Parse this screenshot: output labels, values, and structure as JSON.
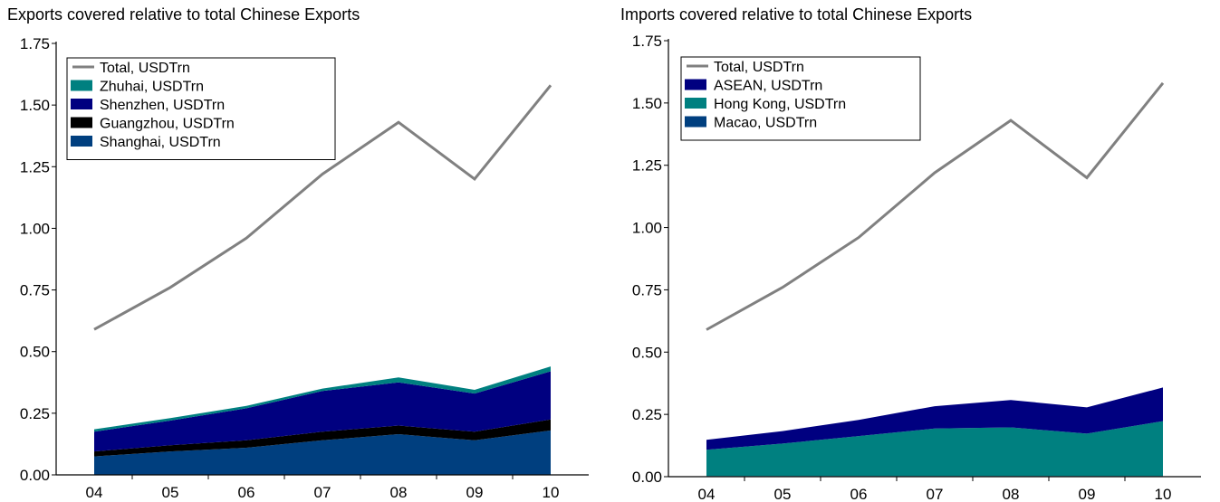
{
  "chart_data": [
    {
      "type": "area",
      "title": "Exports covered relative to total Chinese Exports",
      "categories": [
        "04",
        "05",
        "06",
        "07",
        "08",
        "09",
        "10"
      ],
      "ylim": [
        0,
        1.75
      ],
      "yticks": [
        "0.00",
        "0.25",
        "0.50",
        "0.75",
        "1.00",
        "1.25",
        "1.50",
        "1.75"
      ],
      "legend_position": "top-left",
      "line_series": {
        "name": "Total, USDTrn",
        "color": "#808080",
        "values": [
          0.59,
          0.76,
          0.96,
          1.22,
          1.43,
          1.2,
          1.58
        ]
      },
      "stack_order_bottom_to_top": [
        "Shanghai, USDTrn",
        "Guangzhou, USDTrn",
        "Shenzhen, USDTrn",
        "Zhuhai, USDTrn"
      ],
      "series": [
        {
          "name": "Zhuhai, USDTrn",
          "color": "#008080",
          "values": [
            0.01,
            0.01,
            0.01,
            0.01,
            0.02,
            0.015,
            0.02
          ]
        },
        {
          "name": "Shenzhen, USDTrn",
          "color": "#000080",
          "values": [
            0.08,
            0.1,
            0.13,
            0.165,
            0.175,
            0.155,
            0.195
          ]
        },
        {
          "name": "Guangzhou, USDTrn",
          "color": "#000000",
          "values": [
            0.02,
            0.025,
            0.03,
            0.035,
            0.035,
            0.035,
            0.045
          ]
        },
        {
          "name": "Shanghai, USDTrn",
          "color": "#003F7F",
          "values": [
            0.075,
            0.095,
            0.11,
            0.14,
            0.165,
            0.14,
            0.18
          ]
        }
      ]
    },
    {
      "type": "area",
      "title": "Imports covered relative to total Chinese Exports",
      "categories": [
        "04",
        "05",
        "06",
        "07",
        "08",
        "09",
        "10"
      ],
      "ylim": [
        0,
        1.75
      ],
      "yticks": [
        "0.00",
        "0.25",
        "0.50",
        "0.75",
        "1.00",
        "1.25",
        "1.50",
        "1.75"
      ],
      "legend_position": "top-left",
      "line_series": {
        "name": "Total, USDTrn",
        "color": "#808080",
        "values": [
          0.59,
          0.76,
          0.96,
          1.22,
          1.43,
          1.2,
          1.58
        ]
      },
      "stack_order_bottom_to_top": [
        "Macao, USDTrn",
        "Hong Kong, USDTrn",
        "ASEAN, USDTrn"
      ],
      "series": [
        {
          "name": "ASEAN, USDTrn",
          "color": "#000080",
          "values": [
            0.04,
            0.05,
            0.065,
            0.09,
            0.11,
            0.105,
            0.135
          ]
        },
        {
          "name": "Hong Kong, USDTrn",
          "color": "#008080",
          "values": [
            0.105,
            0.13,
            0.16,
            0.19,
            0.195,
            0.17,
            0.22
          ]
        },
        {
          "name": "Macao, USDTrn",
          "color": "#003F7F",
          "values": [
            0.003,
            0.003,
            0.003,
            0.003,
            0.003,
            0.003,
            0.003
          ]
        }
      ]
    }
  ]
}
